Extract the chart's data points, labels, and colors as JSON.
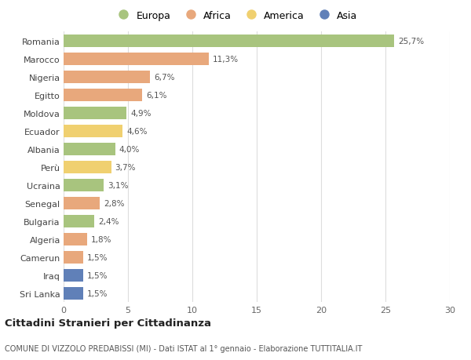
{
  "countries": [
    "Romania",
    "Marocco",
    "Nigeria",
    "Egitto",
    "Moldova",
    "Ecuador",
    "Albania",
    "Perù",
    "Ucraina",
    "Senegal",
    "Bulgaria",
    "Algeria",
    "Camerun",
    "Iraq",
    "Sri Lanka"
  ],
  "values": [
    25.7,
    11.3,
    6.7,
    6.1,
    4.9,
    4.6,
    4.0,
    3.7,
    3.1,
    2.8,
    2.4,
    1.8,
    1.5,
    1.5,
    1.5
  ],
  "labels": [
    "25,7%",
    "11,3%",
    "6,7%",
    "6,1%",
    "4,9%",
    "4,6%",
    "4,0%",
    "3,7%",
    "3,1%",
    "2,8%",
    "2,4%",
    "1,8%",
    "1,5%",
    "1,5%",
    "1,5%"
  ],
  "continents": [
    "Europa",
    "Africa",
    "Africa",
    "Africa",
    "Europa",
    "America",
    "Europa",
    "America",
    "Europa",
    "Africa",
    "Europa",
    "Africa",
    "Africa",
    "Asia",
    "Asia"
  ],
  "colors": {
    "Europa": "#a8c47e",
    "Africa": "#e8a87c",
    "America": "#f0d070",
    "Asia": "#6080b8"
  },
  "title": "Cittadini Stranieri per Cittadinanza",
  "subtitle": "COMUNE DI VIZZOLO PREDABISSI (MI) - Dati ISTAT al 1° gennaio - Elaborazione TUTTITALIA.IT",
  "xlim": [
    0,
    30
  ],
  "xticks": [
    0,
    5,
    10,
    15,
    20,
    25,
    30
  ],
  "background_color": "#ffffff",
  "grid_color": "#dddddd",
  "legend_order": [
    "Europa",
    "Africa",
    "America",
    "Asia"
  ]
}
